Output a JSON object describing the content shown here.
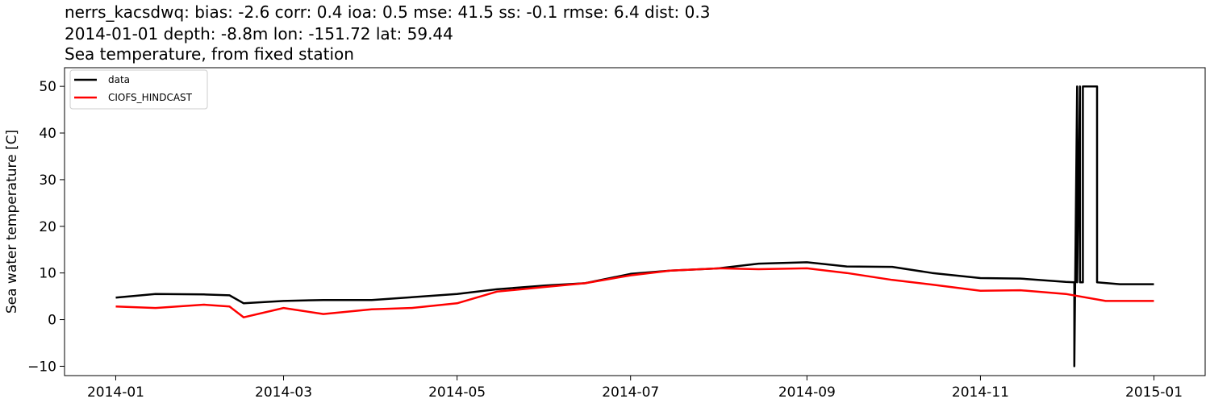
{
  "header": {
    "stats_line": "nerrs_kacsdwq: bias: -2.6  corr: 0.4  ioa: 0.5  mse: 41.5  ss: -0.1  rmse: 6.4  dist: 0.3",
    "location_line": "2014-01-01 depth: -8.8m lon: -151.72 lat: 59.44",
    "title": "Sea temperature, from fixed station"
  },
  "chart_data": {
    "type": "line",
    "title": "Sea temperature, from fixed station",
    "xlabel": "",
    "ylabel": "Sea water temperature [C]",
    "x_axis": {
      "type": "date",
      "range": [
        "2013-12-14",
        "2015-01-19"
      ],
      "tick_labels": [
        "2014-01",
        "2014-03",
        "2014-05",
        "2014-07",
        "2014-09",
        "2014-11",
        "2015-01"
      ]
    },
    "y_axis": {
      "range": [
        -12,
        54
      ],
      "ticks": [
        -10,
        0,
        10,
        20,
        30,
        40,
        50
      ],
      "tick_labels": [
        "−10",
        "0",
        "10",
        "20",
        "30",
        "40",
        "50"
      ]
    },
    "grid": false,
    "legend": {
      "position": "top-left",
      "entries": [
        "data",
        "CIOFS_HINDCAST"
      ]
    },
    "colors": {
      "data": "#000000",
      "CIOFS_HINDCAST": "#ff0000"
    },
    "series": [
      {
        "name": "data",
        "x": [
          "2014-01-01",
          "2014-01-15",
          "2014-02-01",
          "2014-02-10",
          "2014-02-15",
          "2014-03-01",
          "2014-03-15",
          "2014-04-01",
          "2014-04-15",
          "2014-05-01",
          "2014-05-15",
          "2014-06-01",
          "2014-06-15",
          "2014-07-01",
          "2014-07-15",
          "2014-08-01",
          "2014-08-15",
          "2014-09-01",
          "2014-09-15",
          "2014-10-01",
          "2014-10-15",
          "2014-11-01",
          "2014-11-15",
          "2014-12-01",
          "2014-12-04",
          "2014-12-04",
          "2014-12-05",
          "2014-12-05",
          "2014-12-06",
          "2014-12-06",
          "2014-12-07",
          "2014-12-07",
          "2014-12-12",
          "2014-12-12",
          "2014-12-20",
          "2015-01-01"
        ],
        "y": [
          4.7,
          5.5,
          5.4,
          5.2,
          3.5,
          4.0,
          4.2,
          4.2,
          4.8,
          5.5,
          6.5,
          7.3,
          7.8,
          9.8,
          10.5,
          11.0,
          12.0,
          12.3,
          11.4,
          11.3,
          10.0,
          8.9,
          8.8,
          8.1,
          8.0,
          -10.0,
          50.0,
          8.0,
          50.0,
          8.0,
          8.0,
          50.0,
          50.0,
          8.0,
          7.6,
          7.6
        ]
      },
      {
        "name": "CIOFS_HINDCAST",
        "x": [
          "2014-01-01",
          "2014-01-15",
          "2014-02-01",
          "2014-02-10",
          "2014-02-15",
          "2014-03-01",
          "2014-03-15",
          "2014-04-01",
          "2014-04-15",
          "2014-05-01",
          "2014-05-15",
          "2014-06-01",
          "2014-06-15",
          "2014-07-01",
          "2014-07-15",
          "2014-08-01",
          "2014-08-15",
          "2014-09-01",
          "2014-09-15",
          "2014-10-01",
          "2014-10-15",
          "2014-11-01",
          "2014-11-15",
          "2014-12-01",
          "2014-12-15",
          "2015-01-01"
        ],
        "y": [
          2.8,
          2.5,
          3.2,
          2.8,
          0.5,
          2.5,
          1.2,
          2.2,
          2.5,
          3.5,
          6.0,
          7.0,
          7.8,
          9.5,
          10.5,
          11.0,
          10.8,
          11.0,
          10.0,
          8.5,
          7.5,
          6.2,
          6.3,
          5.5,
          4.0,
          4.0
        ]
      }
    ]
  }
}
